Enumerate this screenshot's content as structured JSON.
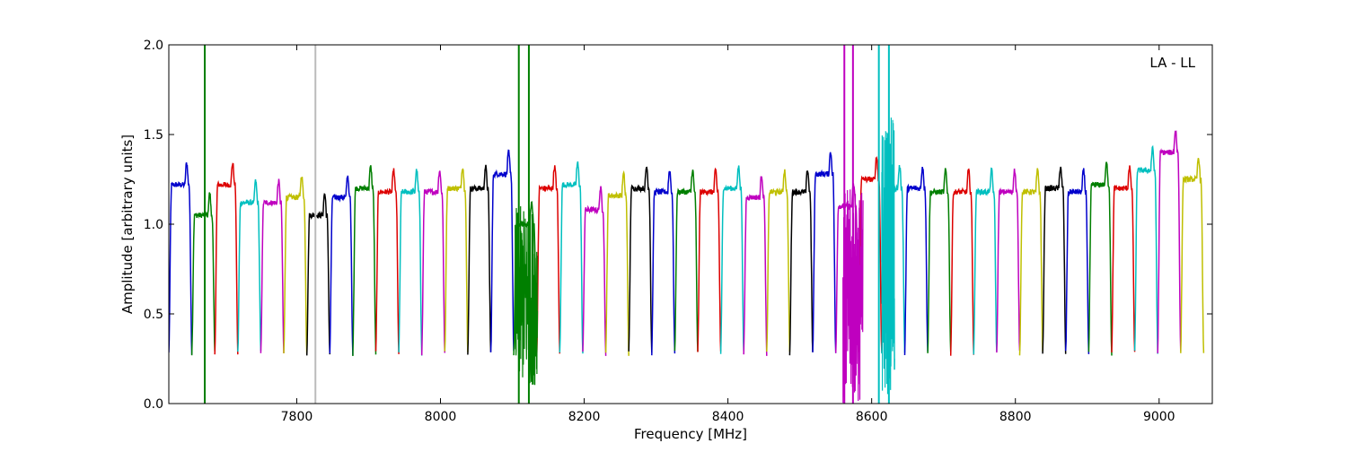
{
  "chart_data": {
    "type": "line",
    "title": "",
    "xlabel": "Frequency [MHz]",
    "ylabel": "Amplitude [arbitrary units]",
    "annotation": "LA - LL",
    "annotation_position": "top-right",
    "xlim": [
      7622,
      9074
    ],
    "ylim": [
      0.0,
      2.0
    ],
    "x_ticks": [
      7800,
      8000,
      8200,
      8400,
      8600,
      8800,
      9000
    ],
    "y_ticks": [
      "0.0",
      "0.5",
      "1.0",
      "1.5",
      "2.0"
    ],
    "grid": false,
    "legend": "none",
    "channel_width_mhz": 32,
    "color_cycle": [
      "#0000cc",
      "#007f00",
      "#dd0000",
      "#00bfbf",
      "#bf00bf",
      "#bfbf00",
      "#000000"
    ],
    "channels": [
      {
        "start": 7622,
        "level": 1.22,
        "color": "#0000cc"
      },
      {
        "start": 7654,
        "level": 1.05,
        "color": "#007f00"
      },
      {
        "start": 7686,
        "level": 1.22,
        "color": "#dd0000"
      },
      {
        "start": 7718,
        "level": 1.12,
        "color": "#00bfbf"
      },
      {
        "start": 7750,
        "level": 1.12,
        "color": "#bf00bf"
      },
      {
        "start": 7782,
        "level": 1.15,
        "color": "#bfbf00"
      },
      {
        "start": 7814,
        "level": 1.05,
        "color": "#000000"
      },
      {
        "start": 7846,
        "level": 1.15,
        "color": "#0000cc"
      },
      {
        "start": 7878,
        "level": 1.2,
        "color": "#007f00"
      },
      {
        "start": 7910,
        "level": 1.18,
        "color": "#dd0000"
      },
      {
        "start": 7942,
        "level": 1.18,
        "color": "#00bfbf"
      },
      {
        "start": 7974,
        "level": 1.18,
        "color": "#bf00bf"
      },
      {
        "start": 8006,
        "level": 1.2,
        "color": "#bfbf00"
      },
      {
        "start": 8038,
        "level": 1.2,
        "color": "#000000"
      },
      {
        "start": 8070,
        "level": 1.28,
        "color": "#0000cc"
      },
      {
        "start": 8102,
        "level": 1.0,
        "color": "#007f00"
      },
      {
        "start": 8134,
        "level": 1.2,
        "color": "#dd0000"
      },
      {
        "start": 8166,
        "level": 1.22,
        "color": "#00bfbf"
      },
      {
        "start": 8198,
        "level": 1.08,
        "color": "#bf00bf"
      },
      {
        "start": 8230,
        "level": 1.16,
        "color": "#bfbf00"
      },
      {
        "start": 8262,
        "level": 1.2,
        "color": "#000000"
      },
      {
        "start": 8294,
        "level": 1.18,
        "color": "#0000cc"
      },
      {
        "start": 8326,
        "level": 1.18,
        "color": "#007f00"
      },
      {
        "start": 8358,
        "level": 1.18,
        "color": "#dd0000"
      },
      {
        "start": 8390,
        "level": 1.2,
        "color": "#00bfbf"
      },
      {
        "start": 8422,
        "level": 1.15,
        "color": "#bf00bf"
      },
      {
        "start": 8454,
        "level": 1.18,
        "color": "#bfbf00"
      },
      {
        "start": 8486,
        "level": 1.18,
        "color": "#000000"
      },
      {
        "start": 8518,
        "level": 1.28,
        "color": "#0000cc"
      },
      {
        "start": 8550,
        "level": 1.1,
        "color": "#bf00bf"
      },
      {
        "start": 8582,
        "level": 1.25,
        "color": "#dd0000"
      },
      {
        "start": 8614,
        "level": 1.2,
        "color": "#00bfbf"
      },
      {
        "start": 8646,
        "level": 1.2,
        "color": "#0000cc"
      },
      {
        "start": 8678,
        "level": 1.18,
        "color": "#007f00"
      },
      {
        "start": 8710,
        "level": 1.18,
        "color": "#dd0000"
      },
      {
        "start": 8742,
        "level": 1.18,
        "color": "#00bfbf"
      },
      {
        "start": 8774,
        "level": 1.18,
        "color": "#bf00bf"
      },
      {
        "start": 8806,
        "level": 1.18,
        "color": "#bfbf00"
      },
      {
        "start": 8838,
        "level": 1.2,
        "color": "#000000"
      },
      {
        "start": 8870,
        "level": 1.18,
        "color": "#0000cc"
      },
      {
        "start": 8902,
        "level": 1.22,
        "color": "#007f00"
      },
      {
        "start": 8934,
        "level": 1.2,
        "color": "#dd0000"
      },
      {
        "start": 8966,
        "level": 1.3,
        "color": "#00bfbf"
      },
      {
        "start": 8998,
        "level": 1.4,
        "color": "#bf00bf"
      },
      {
        "start": 9030,
        "level": 1.25,
        "color": "#bfbf00"
      }
    ],
    "spikes": [
      {
        "x": 7672,
        "color": "#007f00"
      },
      {
        "x": 7826,
        "color": "#bbbbbb"
      },
      {
        "x": 8109,
        "color": "#007f00"
      },
      {
        "x": 8123,
        "color": "#007f00"
      },
      {
        "x": 8562,
        "color": "#bf00bf"
      },
      {
        "x": 8574,
        "color": "#bf00bf"
      },
      {
        "x": 8610,
        "color": "#00bfbf"
      },
      {
        "x": 8624,
        "color": "#00bfbf"
      }
    ],
    "noise_regions": [
      {
        "from": 8104,
        "to": 8135,
        "color": "#007f00",
        "low": 0.1,
        "high": 1.1
      },
      {
        "from": 8560,
        "to": 8588,
        "color": "#bf00bf",
        "low": 0.0,
        "high": 1.2
      },
      {
        "from": 8614,
        "to": 8632,
        "color": "#00bfbf",
        "low": 0.05,
        "high": 1.6
      }
    ]
  }
}
